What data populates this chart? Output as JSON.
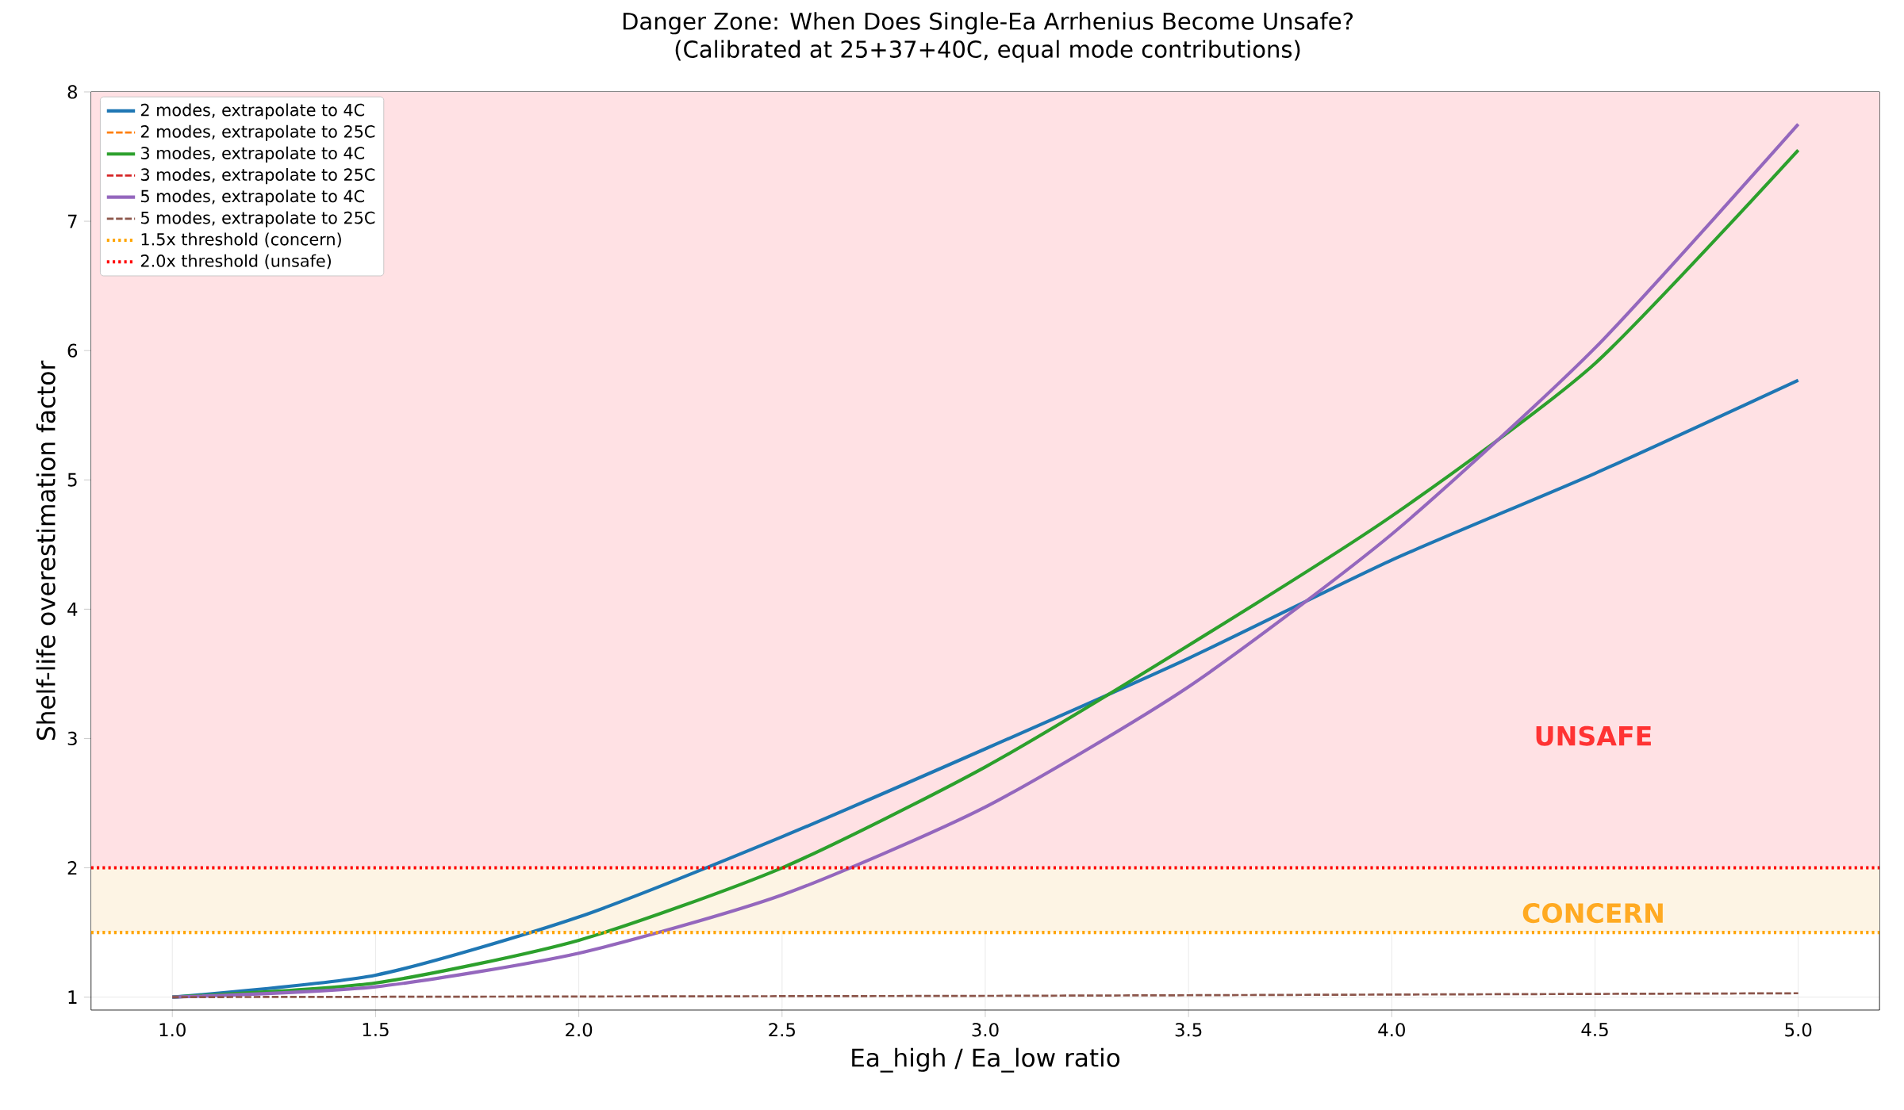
{
  "chart_data": {
    "type": "line",
    "title": "Danger Zone: When Does Single-Ea Arrhenius Become Unsafe?",
    "subtitle": "(Calibrated at 25+37+40C, equal mode contributions)",
    "xlabel": "Ea_high / Ea_low ratio",
    "ylabel": "Shelf-life overestimation factor",
    "xlim": [
      0.8,
      5.2
    ],
    "ylim": [
      0.9,
      8
    ],
    "xticks": [
      {
        "value": 1.0,
        "label": "1.0"
      },
      1.5,
      {
        "value": 2.0,
        "label": "2.0"
      },
      2.5,
      {
        "value": 3.0,
        "label": "3.0"
      },
      3.5,
      {
        "value": 4.0,
        "label": "4.0"
      },
      4.5,
      {
        "value": 5.0,
        "label": "5.0"
      }
    ],
    "yticks": [
      1,
      2,
      3,
      4,
      5,
      6,
      7,
      8
    ],
    "grid": true,
    "legend": "top left",
    "marker": "none",
    "series": [
      {
        "name": "2 modes, extrapolate to 4C",
        "color": "#1f77b4",
        "line_style": "solid",
        "x": [
          1.0,
          1.5,
          2.0,
          2.5,
          3.0,
          3.5,
          4.0,
          4.5,
          5.0
        ],
        "values": [
          1.0,
          1.17,
          1.62,
          2.24,
          2.92,
          3.62,
          4.38,
          5.05,
          5.77
        ]
      },
      {
        "name": "2 modes, extrapolate to 25C",
        "color": "#ff7f0e",
        "line_style": "dashed"
      },
      {
        "name": "3 modes, extrapolate to 4C",
        "color": "#2ca02c",
        "line_style": "solid",
        "x": [
          1.0,
          1.5,
          2.0,
          2.5,
          3.0,
          3.5,
          4.0,
          4.5,
          5.0
        ],
        "values": [
          1.0,
          1.11,
          1.44,
          2.0,
          2.78,
          3.72,
          4.72,
          5.9,
          7.55
        ]
      },
      {
        "name": "3 modes, extrapolate to 25C",
        "color": "#d62728",
        "line_style": "dashed"
      },
      {
        "name": "5 modes, extrapolate to 4C",
        "color": "#9467bd",
        "line_style": "solid",
        "x": [
          1.0,
          1.5,
          2.0,
          2.5,
          3.0,
          3.5,
          4.0,
          4.5,
          5.0
        ],
        "values": [
          1.0,
          1.08,
          1.34,
          1.79,
          2.47,
          3.4,
          4.58,
          6.02,
          7.75
        ]
      },
      {
        "name": "5 modes, extrapolate to 25C",
        "color": "#8c564b",
        "line_style": "dashed",
        "x": [
          1.0,
          2.0,
          3.0,
          4.0,
          5.0
        ],
        "values": [
          1.0,
          1.005,
          1.01,
          1.02,
          1.03
        ]
      }
    ],
    "ref_lines": [
      {
        "axis": "y",
        "value": 1.5,
        "label": "1.5x threshold (concern)",
        "color": "#ffa500",
        "line_style": "dotted"
      },
      {
        "axis": "y",
        "value": 2.0,
        "label": "2.0x threshold (unsafe)",
        "color": "#ff0000",
        "line_style": "dotted"
      }
    ],
    "bands": [
      {
        "axis": "y",
        "from": 2.0,
        "to": 8,
        "color": "#ffe1e4",
        "label": "**UNSAFE**"
      },
      {
        "axis": "y",
        "from": 1.5,
        "to": 2.0,
        "color": "#fdf4e4",
        "label": "**CONCERN**"
      }
    ]
  }
}
